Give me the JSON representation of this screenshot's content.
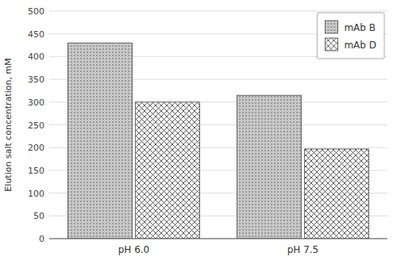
{
  "chart_data": {
    "type": "bar",
    "categories": [
      "pH 6.0",
      "pH 7.5"
    ],
    "series": [
      {
        "name": "mAb B",
        "color": "#c8c8c8",
        "values": [
          430,
          315
        ]
      },
      {
        "name": "mAb D",
        "color": "#ffffff",
        "values": [
          300,
          197
        ]
      }
    ],
    "y_label": "Elution salt concentration, mM",
    "ylim": [
      0,
      500
    ],
    "yticks": [
      0,
      50,
      100,
      150,
      200,
      250,
      300,
      350,
      400,
      450,
      500
    ],
    "grid": true,
    "legend": "upper right"
  }
}
